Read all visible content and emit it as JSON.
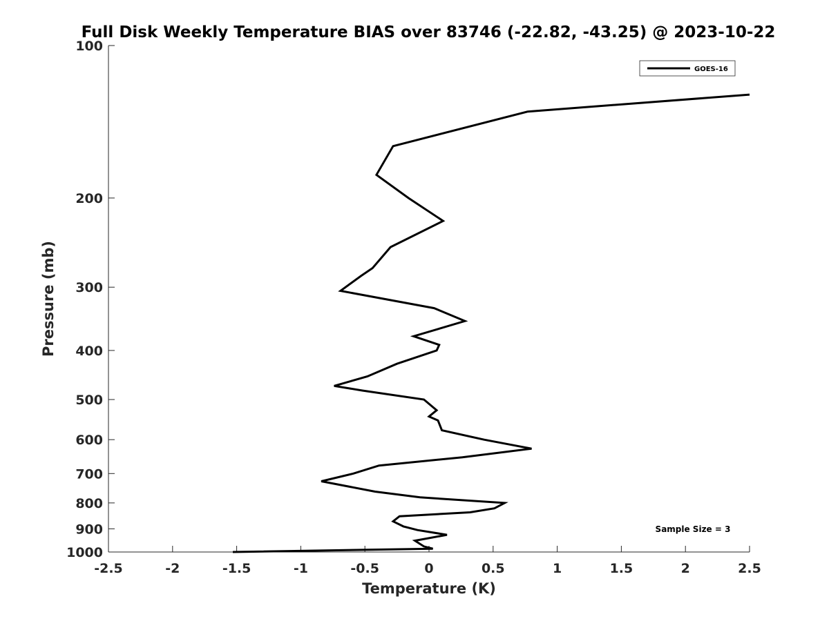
{
  "chart_data": {
    "type": "line",
    "title": "Full Disk Weekly Temperature BIAS over 83746 (-22.82, -43.25) @ 2023-10-22",
    "xlabel": "Temperature (K)",
    "ylabel": "Pressure (mb)",
    "xlim": [
      -2.5,
      2.5
    ],
    "ylim": [
      100,
      1000
    ],
    "y_scale": "log",
    "y_reversed": true,
    "x_ticks": [
      -2.5,
      -2,
      -1.5,
      -1,
      -0.5,
      0,
      0.5,
      1,
      1.5,
      2,
      2.5
    ],
    "x_tick_labels": [
      "-2.5",
      "-2",
      "-1.5",
      "-1",
      "-0.5",
      "0",
      "0.5",
      "1",
      "1.5",
      "2",
      "2.5"
    ],
    "y_ticks": [
      100,
      200,
      300,
      400,
      500,
      600,
      700,
      800,
      900,
      1000
    ],
    "y_tick_labels": [
      "100",
      "200",
      "300",
      "400",
      "500",
      "600",
      "700",
      "800",
      "900",
      "1000"
    ],
    "grid": false,
    "legend": {
      "position": "top-right",
      "entries": [
        "GOES-16"
      ]
    },
    "annotation": "Sample Size = 3",
    "series": [
      {
        "name": "GOES-16",
        "color": "#000000",
        "points": [
          {
            "x": 2.5,
            "y": 125
          },
          {
            "x": 0.77,
            "y": 135
          },
          {
            "x": -0.28,
            "y": 158
          },
          {
            "x": -0.41,
            "y": 180
          },
          {
            "x": -0.16,
            "y": 200
          },
          {
            "x": 0.11,
            "y": 222
          },
          {
            "x": -0.3,
            "y": 250
          },
          {
            "x": -0.44,
            "y": 275
          },
          {
            "x": -0.53,
            "y": 285
          },
          {
            "x": -0.69,
            "y": 305
          },
          {
            "x": 0.04,
            "y": 330
          },
          {
            "x": 0.28,
            "y": 350
          },
          {
            "x": -0.12,
            "y": 375
          },
          {
            "x": 0.08,
            "y": 390
          },
          {
            "x": 0.06,
            "y": 400
          },
          {
            "x": -0.25,
            "y": 425
          },
          {
            "x": -0.48,
            "y": 450
          },
          {
            "x": -0.74,
            "y": 470
          },
          {
            "x": -0.52,
            "y": 480
          },
          {
            "x": -0.04,
            "y": 500
          },
          {
            "x": 0.06,
            "y": 525
          },
          {
            "x": 0.0,
            "y": 540
          },
          {
            "x": 0.07,
            "y": 550
          },
          {
            "x": 0.1,
            "y": 575
          },
          {
            "x": 0.43,
            "y": 600
          },
          {
            "x": 0.8,
            "y": 625
          },
          {
            "x": 0.26,
            "y": 650
          },
          {
            "x": -0.39,
            "y": 675
          },
          {
            "x": -0.59,
            "y": 700
          },
          {
            "x": -0.84,
            "y": 725
          },
          {
            "x": -0.42,
            "y": 760
          },
          {
            "x": -0.07,
            "y": 780
          },
          {
            "x": 0.59,
            "y": 800
          },
          {
            "x": 0.51,
            "y": 820
          },
          {
            "x": 0.32,
            "y": 835
          },
          {
            "x": -0.23,
            "y": 850
          },
          {
            "x": -0.28,
            "y": 870
          },
          {
            "x": -0.2,
            "y": 890
          },
          {
            "x": -0.09,
            "y": 905
          },
          {
            "x": 0.14,
            "y": 925
          },
          {
            "x": -0.11,
            "y": 950
          },
          {
            "x": -0.04,
            "y": 975
          },
          {
            "x": 0.03,
            "y": 985
          },
          {
            "x": -1.53,
            "y": 1000
          }
        ]
      }
    ]
  }
}
